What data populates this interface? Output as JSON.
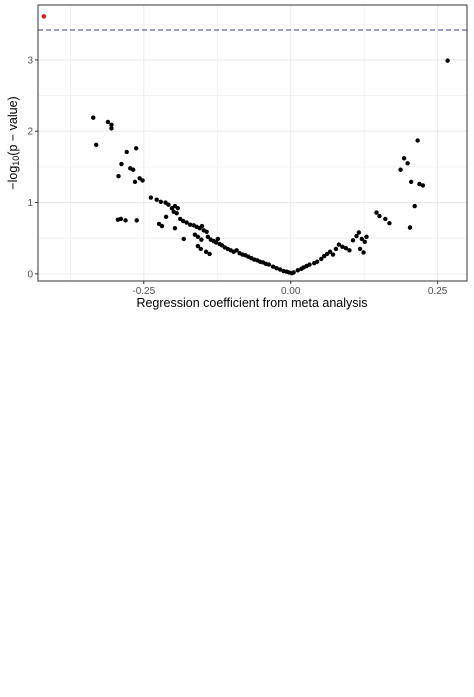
{
  "chart_data": {
    "type": "scatter",
    "title": "",
    "xlabel": "Regression coefficient from meta analysis",
    "ylabel_parts": {
      "pre": "−log",
      "sub": "10",
      "post": "(p − value)"
    },
    "xlim": [
      -0.43,
      0.3
    ],
    "ylim": [
      -0.1,
      3.77
    ],
    "x_ticks": [
      {
        "value": -0.25,
        "label": "-0.25"
      },
      {
        "value": 0.0,
        "label": "0.00"
      },
      {
        "value": 0.25,
        "label": "0.25"
      }
    ],
    "y_ticks": [
      {
        "value": 0,
        "label": "0"
      },
      {
        "value": 1,
        "label": "1"
      },
      {
        "value": 2,
        "label": "2"
      },
      {
        "value": 3,
        "label": "3"
      }
    ],
    "grid": true,
    "threshold_line": {
      "y": 3.42,
      "color": "#3a3aa0",
      "style": "dashed"
    },
    "colors": {
      "point": "#000000",
      "highlight": "#cc2222",
      "grid": "#ebebeb",
      "border": "#333333"
    },
    "highlight_points": [
      {
        "x": -0.42,
        "y": 3.61
      }
    ],
    "points": [
      {
        "x": -0.336,
        "y": 2.19
      },
      {
        "x": -0.311,
        "y": 2.13
      },
      {
        "x": -0.305,
        "y": 2.09
      },
      {
        "x": -0.305,
        "y": 2.04
      },
      {
        "x": -0.331,
        "y": 1.81
      },
      {
        "x": -0.279,
        "y": 1.71
      },
      {
        "x": -0.263,
        "y": 1.76
      },
      {
        "x": -0.288,
        "y": 1.54
      },
      {
        "x": -0.273,
        "y": 1.48
      },
      {
        "x": -0.268,
        "y": 1.46
      },
      {
        "x": -0.293,
        "y": 1.37
      },
      {
        "x": -0.257,
        "y": 1.34
      },
      {
        "x": -0.252,
        "y": 1.31
      },
      {
        "x": -0.265,
        "y": 1.29
      },
      {
        "x": -0.238,
        "y": 1.07
      },
      {
        "x": -0.228,
        "y": 1.04
      },
      {
        "x": -0.221,
        "y": 1.01
      },
      {
        "x": -0.213,
        "y": 1.0
      },
      {
        "x": -0.208,
        "y": 0.97
      },
      {
        "x": -0.202,
        "y": 0.92
      },
      {
        "x": -0.197,
        "y": 0.95
      },
      {
        "x": -0.192,
        "y": 0.92
      },
      {
        "x": -0.199,
        "y": 0.87
      },
      {
        "x": -0.194,
        "y": 0.85
      },
      {
        "x": -0.212,
        "y": 0.8
      },
      {
        "x": -0.188,
        "y": 0.77
      },
      {
        "x": -0.183,
        "y": 0.74
      },
      {
        "x": -0.294,
        "y": 0.76
      },
      {
        "x": -0.289,
        "y": 0.77
      },
      {
        "x": -0.281,
        "y": 0.75
      },
      {
        "x": -0.262,
        "y": 0.75
      },
      {
        "x": -0.224,
        "y": 0.7
      },
      {
        "x": -0.219,
        "y": 0.67
      },
      {
        "x": -0.177,
        "y": 0.72
      },
      {
        "x": -0.171,
        "y": 0.69
      },
      {
        "x": -0.165,
        "y": 0.68
      },
      {
        "x": -0.16,
        "y": 0.66
      },
      {
        "x": -0.155,
        "y": 0.64
      },
      {
        "x": -0.151,
        "y": 0.67
      },
      {
        "x": -0.148,
        "y": 0.61
      },
      {
        "x": -0.143,
        "y": 0.59
      },
      {
        "x": -0.197,
        "y": 0.64
      },
      {
        "x": -0.163,
        "y": 0.55
      },
      {
        "x": -0.158,
        "y": 0.52
      },
      {
        "x": -0.152,
        "y": 0.48
      },
      {
        "x": -0.141,
        "y": 0.52
      },
      {
        "x": -0.136,
        "y": 0.48
      },
      {
        "x": -0.182,
        "y": 0.49
      },
      {
        "x": -0.131,
        "y": 0.46
      },
      {
        "x": -0.127,
        "y": 0.44
      },
      {
        "x": -0.124,
        "y": 0.49
      },
      {
        "x": -0.121,
        "y": 0.42
      },
      {
        "x": -0.158,
        "y": 0.39
      },
      {
        "x": -0.153,
        "y": 0.35
      },
      {
        "x": -0.144,
        "y": 0.31
      },
      {
        "x": -0.138,
        "y": 0.28
      },
      {
        "x": -0.117,
        "y": 0.4
      },
      {
        "x": -0.112,
        "y": 0.37
      },
      {
        "x": -0.107,
        "y": 0.35
      },
      {
        "x": -0.102,
        "y": 0.33
      },
      {
        "x": -0.097,
        "y": 0.31
      },
      {
        "x": -0.092,
        "y": 0.33
      },
      {
        "x": -0.087,
        "y": 0.29
      },
      {
        "x": -0.082,
        "y": 0.27
      },
      {
        "x": -0.077,
        "y": 0.26
      },
      {
        "x": -0.072,
        "y": 0.24
      },
      {
        "x": -0.067,
        "y": 0.22
      },
      {
        "x": -0.062,
        "y": 0.2
      },
      {
        "x": -0.057,
        "y": 0.19
      },
      {
        "x": -0.052,
        "y": 0.17
      },
      {
        "x": -0.047,
        "y": 0.16
      },
      {
        "x": -0.042,
        "y": 0.14
      },
      {
        "x": -0.037,
        "y": 0.13
      },
      {
        "x": -0.03,
        "y": 0.1
      },
      {
        "x": -0.024,
        "y": 0.08
      },
      {
        "x": -0.018,
        "y": 0.06
      },
      {
        "x": -0.012,
        "y": 0.04
      },
      {
        "x": -0.007,
        "y": 0.03
      },
      {
        "x": -0.003,
        "y": 0.02
      },
      {
        "x": 0.002,
        "y": 0.01
      },
      {
        "x": 0.005,
        "y": 0.02
      },
      {
        "x": 0.012,
        "y": 0.05
      },
      {
        "x": 0.018,
        "y": 0.07
      },
      {
        "x": 0.022,
        "y": 0.09
      },
      {
        "x": 0.027,
        "y": 0.11
      },
      {
        "x": 0.032,
        "y": 0.13
      },
      {
        "x": 0.04,
        "y": 0.15
      },
      {
        "x": 0.045,
        "y": 0.17
      },
      {
        "x": 0.052,
        "y": 0.21
      },
      {
        "x": 0.057,
        "y": 0.25
      },
      {
        "x": 0.062,
        "y": 0.28
      },
      {
        "x": 0.067,
        "y": 0.31
      },
      {
        "x": 0.072,
        "y": 0.27
      },
      {
        "x": 0.077,
        "y": 0.35
      },
      {
        "x": 0.082,
        "y": 0.41
      },
      {
        "x": 0.088,
        "y": 0.38
      },
      {
        "x": 0.094,
        "y": 0.36
      },
      {
        "x": 0.1,
        "y": 0.33
      },
      {
        "x": 0.106,
        "y": 0.47
      },
      {
        "x": 0.112,
        "y": 0.53
      },
      {
        "x": 0.116,
        "y": 0.58
      },
      {
        "x": 0.121,
        "y": 0.49
      },
      {
        "x": 0.126,
        "y": 0.45
      },
      {
        "x": 0.129,
        "y": 0.52
      },
      {
        "x": 0.118,
        "y": 0.35
      },
      {
        "x": 0.124,
        "y": 0.3
      },
      {
        "x": 0.146,
        "y": 0.86
      },
      {
        "x": 0.151,
        "y": 0.81
      },
      {
        "x": 0.161,
        "y": 0.77
      },
      {
        "x": 0.168,
        "y": 0.71
      },
      {
        "x": 0.187,
        "y": 1.46
      },
      {
        "x": 0.193,
        "y": 1.62
      },
      {
        "x": 0.199,
        "y": 1.55
      },
      {
        "x": 0.205,
        "y": 1.29
      },
      {
        "x": 0.203,
        "y": 0.65
      },
      {
        "x": 0.211,
        "y": 0.95
      },
      {
        "x": 0.216,
        "y": 1.87
      },
      {
        "x": 0.219,
        "y": 1.26
      },
      {
        "x": 0.225,
        "y": 1.24
      },
      {
        "x": 0.267,
        "y": 2.99
      }
    ]
  }
}
